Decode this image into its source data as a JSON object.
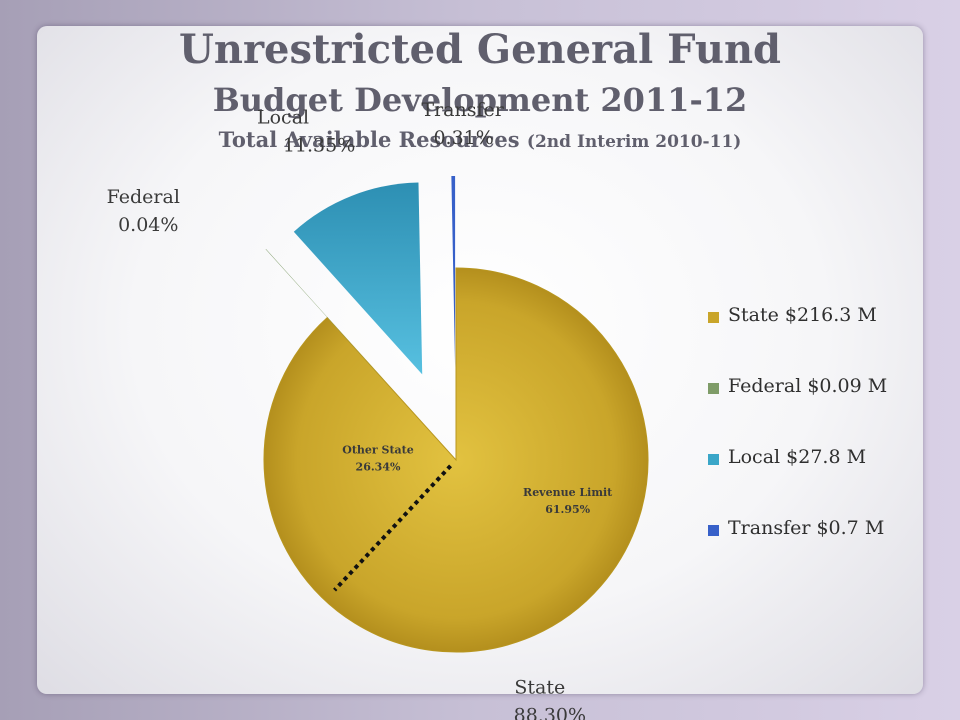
{
  "title": "Unrestricted General Fund",
  "subtitle": "Budget Development 2011-12",
  "subtitle2_main": "Total Available Resources ",
  "subtitle2_paren": "(2nd Interim 2010-11)",
  "colors": {
    "state": "#c9a52a",
    "federal": "#7f9c68",
    "local": "#3aa6c8",
    "transfer": "#3760c9"
  },
  "chart_data": {
    "type": "pie",
    "title": "Unrestricted General Fund",
    "slices": [
      {
        "key": "state",
        "label": "State",
        "percent": 88.3,
        "pct_text": "88.30%",
        "legend": "State  $216.3 M",
        "amount_m": 216.3
      },
      {
        "key": "federal",
        "label": "Federal",
        "percent": 0.04,
        "pct_text": "0.04%",
        "legend": "Federal  $0.09 M",
        "amount_m": 0.09
      },
      {
        "key": "local",
        "label": "Local",
        "percent": 11.35,
        "pct_text": "11.35%",
        "legend": "Local  $27.8 M",
        "amount_m": 27.8
      },
      {
        "key": "transfer",
        "label": "Transfer",
        "percent": 0.31,
        "pct_text": "0.31%",
        "legend": "Transfer  $0.7 M",
        "amount_m": 0.7
      }
    ],
    "state_breakdown": [
      {
        "label": "Revenue Limit",
        "pct_text": "61.95%",
        "percent": 61.95
      },
      {
        "label": "Other State",
        "pct_text": "26.34%",
        "percent": 26.34
      }
    ],
    "legend_position": "right"
  }
}
